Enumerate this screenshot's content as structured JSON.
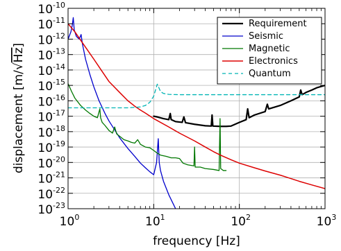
{
  "chart_data": {
    "type": "line",
    "xlabel": "frequency [Hz]",
    "ylabel_prefix": "displacement [m/",
    "ylabel_radicand": "Hz",
    "ylabel_suffix": "]",
    "xscale": "log",
    "yscale": "log",
    "xlim": [
      1,
      1000
    ],
    "ylim": [
      1e-23,
      1e-10
    ],
    "grid": true,
    "legend_position": "top-right",
    "x_ticks": [
      {
        "base": "10",
        "exp": "0",
        "value": 1
      },
      {
        "base": "10",
        "exp": "1",
        "value": 10
      },
      {
        "base": "10",
        "exp": "2",
        "value": 100
      },
      {
        "base": "10",
        "exp": "3",
        "value": 1000
      }
    ],
    "y_ticks": [
      {
        "base": "10",
        "exp": "-10",
        "value": -10
      },
      {
        "base": "10",
        "exp": "-11",
        "value": -11
      },
      {
        "base": "10",
        "exp": "-12",
        "value": -12
      },
      {
        "base": "10",
        "exp": "-13",
        "value": -13
      },
      {
        "base": "10",
        "exp": "-14",
        "value": -14
      },
      {
        "base": "10",
        "exp": "-15",
        "value": -15
      },
      {
        "base": "10",
        "exp": "-16",
        "value": -16
      },
      {
        "base": "10",
        "exp": "-17",
        "value": -17
      },
      {
        "base": "10",
        "exp": "-18",
        "value": -18
      },
      {
        "base": "10",
        "exp": "-19",
        "value": -19
      },
      {
        "base": "10",
        "exp": "-20",
        "value": -20
      },
      {
        "base": "10",
        "exp": "-21",
        "value": -21
      },
      {
        "base": "10",
        "exp": "-22",
        "value": -22
      },
      {
        "base": "10",
        "exp": "-23",
        "value": -23
      }
    ],
    "series": [
      {
        "name": "Requirement",
        "color": "#000000",
        "width": 2.2,
        "dash": "",
        "points": [
          [
            10,
            1e-17
          ],
          [
            11,
            9e-18
          ],
          [
            13,
            7e-18
          ],
          [
            15,
            6e-18
          ],
          [
            15.6,
            1.5e-17
          ],
          [
            16,
            6e-18
          ],
          [
            18,
            4.5e-18
          ],
          [
            21.5,
            4e-18
          ],
          [
            22.5,
            9e-18
          ],
          [
            23.5,
            3.8e-18
          ],
          [
            30,
            3e-18
          ],
          [
            40,
            2.4e-18
          ],
          [
            47,
            2.3e-18
          ],
          [
            48,
            1.2e-17
          ],
          [
            49,
            2.3e-18
          ],
          [
            60,
            2.2e-18
          ],
          [
            70,
            2.2e-18
          ],
          [
            80,
            2.3e-18
          ],
          [
            100,
            4e-18
          ],
          [
            120,
            6e-18
          ],
          [
            125,
            3e-17
          ],
          [
            130,
            8e-18
          ],
          [
            150,
            1.2e-17
          ],
          [
            200,
            2e-17
          ],
          [
            212,
            6e-17
          ],
          [
            220,
            3e-17
          ],
          [
            300,
            5e-17
          ],
          [
            400,
            1e-16
          ],
          [
            500,
            1.8e-16
          ],
          [
            520,
            5e-16
          ],
          [
            540,
            2.5e-16
          ],
          [
            600,
            3.5e-16
          ],
          [
            700,
            5e-16
          ],
          [
            800,
            7e-16
          ],
          [
            1000,
            1e-15
          ]
        ]
      },
      {
        "name": "Seismic",
        "color": "#0000cc",
        "width": 1.3,
        "dash": "",
        "points": [
          [
            1.0,
            1e-12
          ],
          [
            1.08,
            3e-12
          ],
          [
            1.12,
            8e-12
          ],
          [
            1.15,
            2.5e-11
          ],
          [
            1.18,
            4e-12
          ],
          [
            1.25,
            1.5e-12
          ],
          [
            1.35,
            1e-12
          ],
          [
            1.42,
            2e-12
          ],
          [
            1.47,
            5e-13
          ],
          [
            1.6,
            5e-14
          ],
          [
            1.8,
            5e-15
          ],
          [
            2.0,
            8e-16
          ],
          [
            2.3,
            1e-16
          ],
          [
            2.7,
            1.5e-17
          ],
          [
            3.0,
            5e-18
          ],
          [
            3.5,
            1.3e-18
          ],
          [
            4.0,
            4e-19
          ],
          [
            5.0,
            8e-20
          ],
          [
            6.0,
            2.5e-20
          ],
          [
            7.0,
            9e-21
          ],
          [
            8.0,
            4.5e-21
          ],
          [
            9.0,
            2.5e-21
          ],
          [
            10.0,
            1.6e-21
          ],
          [
            10.8,
            1e-20
          ],
          [
            11.3,
            3.5e-19
          ],
          [
            11.6,
            1e-20
          ],
          [
            12.0,
            3e-21
          ],
          [
            13.0,
            6e-22
          ],
          [
            15.0,
            8e-23
          ],
          [
            18.0,
            1e-23
          ],
          [
            21.0,
            1e-24
          ]
        ]
      },
      {
        "name": "Magnetic",
        "color": "#007700",
        "width": 1.3,
        "dash": "",
        "points": [
          [
            1.0,
            1.3e-15
          ],
          [
            1.1,
            4e-16
          ],
          [
            1.2,
            1.5e-16
          ],
          [
            1.4,
            5e-17
          ],
          [
            1.6,
            2.5e-17
          ],
          [
            1.8,
            1.5e-17
          ],
          [
            2.0,
            1e-17
          ],
          [
            2.2,
            8e-18
          ],
          [
            2.35,
            3e-17
          ],
          [
            2.4,
            8e-18
          ],
          [
            2.5,
            4e-18
          ],
          [
            2.7,
            2.5e-18
          ],
          [
            3.0,
            1.2e-18
          ],
          [
            3.3,
            8e-19
          ],
          [
            3.5,
            2e-18
          ],
          [
            3.7,
            7e-19
          ],
          [
            4.0,
            5e-19
          ],
          [
            4.5,
            3e-19
          ],
          [
            5.0,
            2.5e-19
          ],
          [
            5.5,
            2e-19
          ],
          [
            6.0,
            1.8e-19
          ],
          [
            6.5,
            3e-19
          ],
          [
            7.0,
            1.5e-19
          ],
          [
            8.0,
            1e-19
          ],
          [
            9.0,
            9e-20
          ],
          [
            10.0,
            6e-20
          ],
          [
            11.0,
            4e-20
          ],
          [
            12.0,
            3e-20
          ],
          [
            14.0,
            2.5e-20
          ],
          [
            16.0,
            2e-20
          ],
          [
            18.0,
            2e-20
          ],
          [
            20.0,
            1.8e-20
          ],
          [
            22.0,
            9e-21
          ],
          [
            25.0,
            7e-21
          ],
          [
            29.5,
            6e-21
          ],
          [
            30.0,
            1e-19
          ],
          [
            30.5,
            5e-21
          ],
          [
            35.0,
            5e-21
          ],
          [
            40.0,
            4e-21
          ],
          [
            50.0,
            3.5e-21
          ],
          [
            58.0,
            3e-21
          ],
          [
            59.5,
            7e-18
          ],
          [
            60.5,
            4e-21
          ],
          [
            65.0,
            3e-21
          ],
          [
            70.0,
            3e-21
          ]
        ]
      },
      {
        "name": "Electronics",
        "color": "#dd0000",
        "width": 1.5,
        "dash": "",
        "points": [
          [
            1.0,
            1e-11
          ],
          [
            1.2,
            3e-12
          ],
          [
            1.5,
            5e-13
          ],
          [
            2.0,
            5e-14
          ],
          [
            2.5,
            8e-15
          ],
          [
            3.0,
            1.8e-15
          ],
          [
            4.0,
            3.5e-16
          ],
          [
            5.0,
            1e-16
          ],
          [
            6.0,
            4.5e-17
          ],
          [
            7.0,
            2.5e-17
          ],
          [
            8.0,
            1.6e-17
          ],
          [
            10.0,
            7e-18
          ],
          [
            15.0,
            2e-18
          ],
          [
            20.0,
            8e-19
          ],
          [
            30.0,
            2.5e-19
          ],
          [
            40.0,
            1e-19
          ],
          [
            50.0,
            5e-20
          ],
          [
            60.0,
            3e-20
          ],
          [
            80.0,
            1.5e-20
          ],
          [
            100.0,
            9e-21
          ],
          [
            150.0,
            4.5e-21
          ],
          [
            200.0,
            2.8e-21
          ],
          [
            300.0,
            1.5e-21
          ],
          [
            400.0,
            9e-22
          ],
          [
            500.0,
            6e-22
          ],
          [
            700.0,
            3.5e-22
          ],
          [
            1000.0,
            2e-22
          ]
        ]
      },
      {
        "name": "Quantum",
        "color": "#00b4b4",
        "width": 1.3,
        "dash": "5,4",
        "points": [
          [
            1.0,
            3.5e-17
          ],
          [
            5.0,
            3.5e-17
          ],
          [
            7.0,
            4e-17
          ],
          [
            8.0,
            5e-17
          ],
          [
            9.0,
            8e-17
          ],
          [
            10.0,
            2e-16
          ],
          [
            10.6,
            6e-16
          ],
          [
            11.0,
            1.2e-15
          ],
          [
            11.5,
            7e-16
          ],
          [
            12.0,
            4e-16
          ],
          [
            13.0,
            3e-16
          ],
          [
            15.0,
            2.6e-16
          ],
          [
            20.0,
            2.5e-16
          ],
          [
            100.0,
            2.5e-16
          ],
          [
            1000.0,
            2.5e-16
          ]
        ]
      }
    ]
  }
}
